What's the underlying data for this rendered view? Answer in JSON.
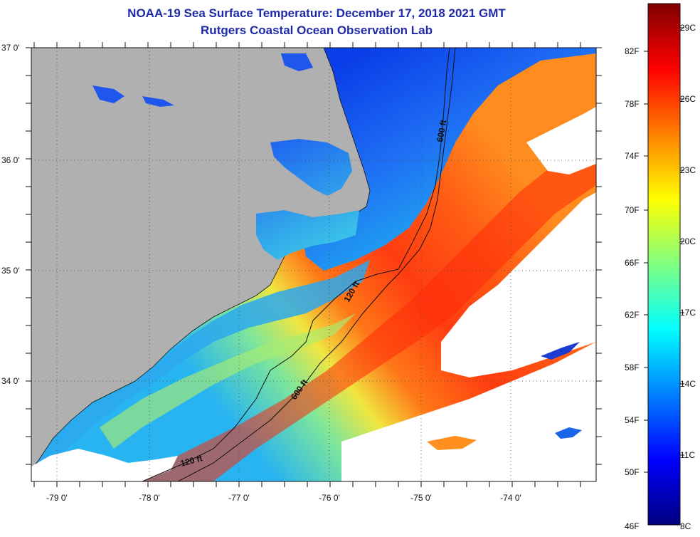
{
  "header": {
    "title": "NOAA-19 Sea Surface Temperature:  December 17, 2018 2021 GMT",
    "subtitle": "Rutgers Coastal Ocean Observation Lab"
  },
  "map": {
    "latitude_labels": [
      "37 0'",
      "36 0'",
      "35 0'",
      "34 0'"
    ],
    "longitude_labels": [
      "-79 0'",
      "-78 0'",
      "-77 0'",
      "-76 0'",
      "-75 0'",
      "-74 0'"
    ],
    "contour_labels": [
      "600 ft",
      "120 ft",
      "600 ft",
      "120 ft"
    ],
    "land_color": "#b0b0b0",
    "cloud_color": "#ffffff"
  },
  "colorbar": {
    "fahrenheit_labels": [
      "82F",
      "78F",
      "74F",
      "70F",
      "66F",
      "62F",
      "58F",
      "54F",
      "50F",
      "46F"
    ],
    "celsius_labels": [
      "29C",
      "26C",
      "23C",
      "20C",
      "17C",
      "14C",
      "11C",
      "8C"
    ],
    "range_f": [
      46,
      86
    ],
    "range_c": [
      8,
      30
    ],
    "stop_colors": [
      "#00007f",
      "#0000ff",
      "#0080ff",
      "#00ffff",
      "#80ff80",
      "#ffff00",
      "#ff8000",
      "#ff0000",
      "#7f0000"
    ]
  }
}
